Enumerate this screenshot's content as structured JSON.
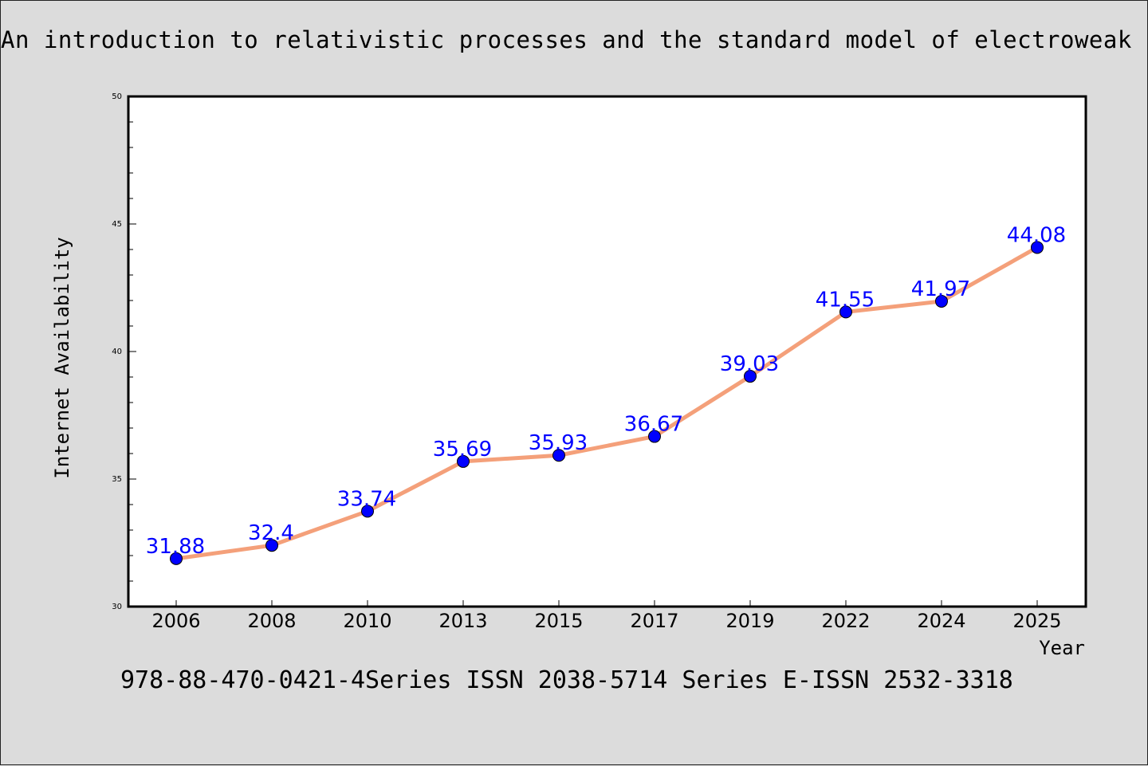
{
  "title": "An introduction to relativistic processes and the standard model of electroweak",
  "footer": "978-88-470-0421-4Series ISSN 2038-5714 Series E-ISSN 2532-3318",
  "chart_data": {
    "type": "line",
    "title": "An introduction to relativistic processes and the standard model of electroweak",
    "xlabel": "Year",
    "ylabel": "Internet Availability",
    "categories": [
      "2006",
      "2008",
      "2010",
      "2013",
      "2015",
      "2017",
      "2019",
      "2022",
      "2024",
      "2025"
    ],
    "series": [
      {
        "values": [
          31.88,
          32.4,
          33.74,
          35.69,
          35.93,
          36.67,
          39.03,
          41.55,
          41.97,
          44.08
        ],
        "labels": [
          "31.88",
          "32.4",
          "33.74",
          "35.69",
          "35.93",
          "36.67",
          "39.03",
          "41.55",
          "41.97",
          "44.08"
        ],
        "line_color": "#f4a07a",
        "marker_color": "#0000ff"
      }
    ],
    "ylim": [
      30,
      50
    ],
    "yticks": [
      "30",
      "35",
      "40",
      "45",
      "50"
    ],
    "grid": false,
    "legend": "none"
  }
}
